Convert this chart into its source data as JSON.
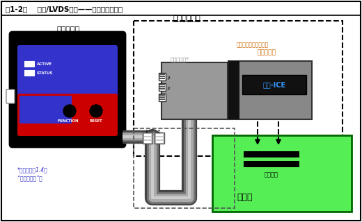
{
  "title": "图1-2：    高速/LVDS连接——调试头或仿真头",
  "bg_color": "#ffffff",
  "section_title": "高性能工具包",
  "emulator_label": "仿真器主机",
  "active_label": "ACTIVE",
  "status_label": "STATUS",
  "function_label": "FUNCTION",
  "reset_label": "RESET",
  "receiver_label": "高速接收板*",
  "ice_label": "器件-ICE",
  "debug_label": "调试头或仿真头，来自",
  "expansion_label": "扩展工具包",
  "socket_label": "转接插座",
  "target_label": "目标板",
  "note_line1": "*另请参见第1.4节",
  "note_line2": "“隔离器连接”。",
  "j2_label": "J2",
  "j3_label": "J3"
}
